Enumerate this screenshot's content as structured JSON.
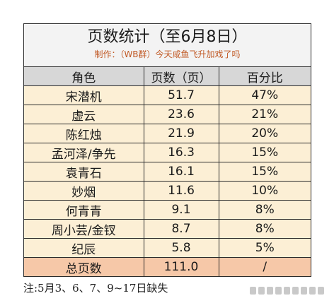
{
  "title": "页数统计（至6月8日）",
  "subtitle": "制作：（WB群）今天咸鱼飞升加戏了吗",
  "headers": [
    "角色",
    "页数（页）",
    "百分比"
  ],
  "rows": [
    {
      "role": "宋潜机",
      "pages": "51.7",
      "percent": "47%"
    },
    {
      "role": "虚云",
      "pages": "23.6",
      "percent": "21%"
    },
    {
      "role": "陈红烛",
      "pages": "21.9",
      "percent": "20%"
    },
    {
      "role": "孟河泽/争先",
      "pages": "16.3",
      "percent": "15%"
    },
    {
      "role": "袁青石",
      "pages": "16.1",
      "percent": "15%"
    },
    {
      "role": "妙烟",
      "pages": "11.6",
      "percent": "10%"
    },
    {
      "role": "何青青",
      "pages": "9.1",
      "percent": "8%"
    },
    {
      "role": "周小芸/金钗",
      "pages": "8.7",
      "percent": "8%"
    },
    {
      "role": "纪辰",
      "pages": "5.8",
      "percent": "5%"
    }
  ],
  "total": {
    "role": "总页数",
    "pages": "111.0",
    "percent": "/"
  },
  "note": "注:5月3、6、7、9~17日缺失"
}
